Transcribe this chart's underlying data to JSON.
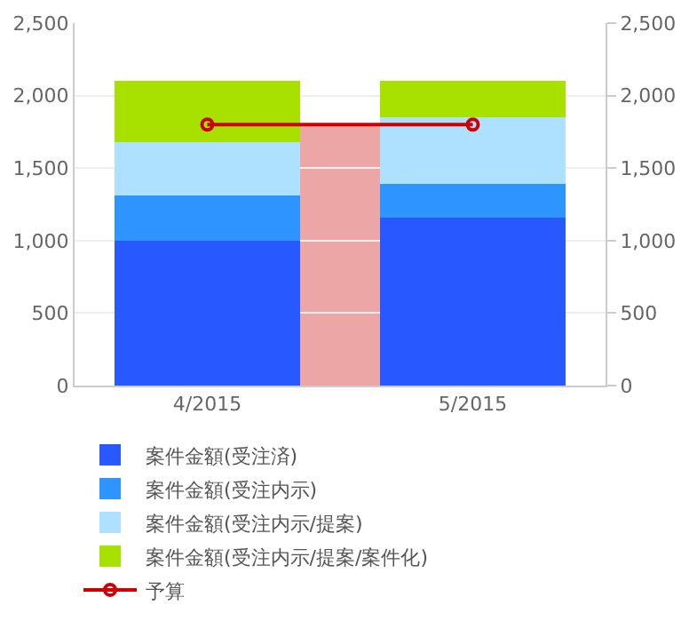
{
  "chart_data": {
    "type": "bar",
    "stacked": true,
    "categories": [
      "4/2015",
      "5/2015"
    ],
    "series": [
      {
        "name": "案件金額(受注済)",
        "color": "#2858ff",
        "values": [
          1000,
          1160
        ]
      },
      {
        "name": "案件金額(受注内示)",
        "color": "#2e94ff",
        "values": [
          310,
          230
        ]
      },
      {
        "name": "案件金額(受注内示/提案)",
        "color": "#aee0ff",
        "values": [
          370,
          460
        ]
      },
      {
        "name": "案件金額(受注内示/提案/案件化)",
        "color": "#a8e000",
        "values": [
          420,
          250
        ]
      },
      {
        "name": "予算",
        "type": "area",
        "axis": "y2",
        "color": "#cc0000",
        "values": [
          1800,
          1800
        ]
      }
    ],
    "ylim": [
      0,
      2500
    ],
    "yticks": [
      {
        "value": 0,
        "label": "0"
      },
      {
        "value": 500,
        "label": "500"
      },
      {
        "value": 1000,
        "label": "1,000"
      },
      {
        "value": 1500,
        "label": "1,500"
      },
      {
        "value": 2000,
        "label": "2,000"
      },
      {
        "value": 2500,
        "label": "2,500"
      }
    ],
    "y2lim": [
      0,
      2500
    ],
    "y2ticks": [
      {
        "value": 0,
        "label": "0"
      },
      {
        "value": 500,
        "label": "500"
      },
      {
        "value": 1000,
        "label": "1,000"
      },
      {
        "value": 1500,
        "label": "1,500"
      },
      {
        "value": 2000,
        "label": "2,000"
      },
      {
        "value": 2500,
        "label": "2,500"
      }
    ],
    "grid": "y",
    "legend": "bottom left",
    "marker": "circle"
  }
}
